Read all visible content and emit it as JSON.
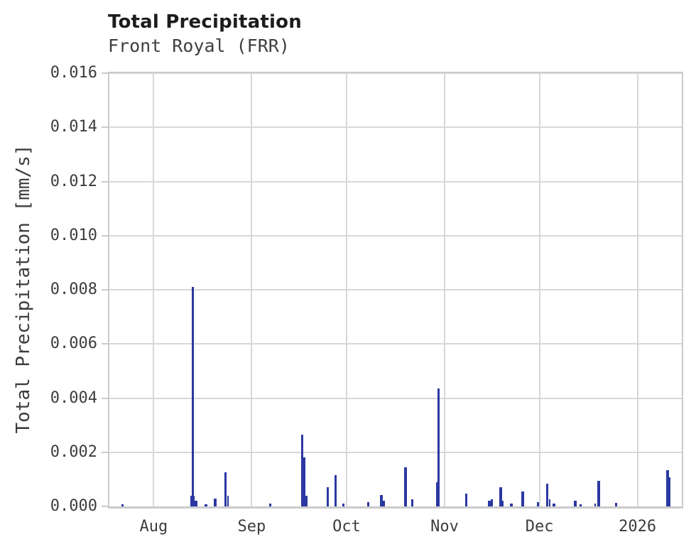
{
  "colors": {
    "bar": "#2b38a2",
    "grid": "#d7d7d7",
    "frame": "#cbcbcb",
    "title_text": "#1c1c1c",
    "label_text": "#3d3d3d"
  },
  "chart_data": {
    "type": "bar",
    "title": "Total Precipitation",
    "subtitle": "Front Royal (FRR)",
    "station": "Front Royal",
    "station_code": "FRR",
    "xlabel": "",
    "ylabel": "Total Precipitation [mm/s]",
    "ylim": [
      0,
      0.016
    ],
    "ytick_labels": [
      "0.000",
      "0.002",
      "0.004",
      "0.006",
      "0.008",
      "0.010",
      "0.012",
      "0.014",
      "0.016"
    ],
    "yticks": [
      0.0,
      0.002,
      0.004,
      0.006,
      0.008,
      0.01,
      0.012,
      0.014,
      0.016
    ],
    "grid": true,
    "legend": "none",
    "x_range": [
      "2025-07-18",
      "2026-01-15"
    ],
    "xticks": [
      {
        "t": "2025-08-01",
        "label": "Aug"
      },
      {
        "t": "2025-09-01",
        "label": "Sep"
      },
      {
        "t": "2025-10-01",
        "label": "Oct"
      },
      {
        "t": "2025-11-01",
        "label": "Nov"
      },
      {
        "t": "2025-12-01",
        "label": "Dec"
      },
      {
        "t": "2026-01-01",
        "label": "2026"
      }
    ],
    "bars": [
      {
        "t": "2025-07-21T17:00",
        "days": 0.8,
        "value": 7e-05
      },
      {
        "t": "2025-08-12T12:00",
        "days": 1.5,
        "value": 0.0004
      },
      {
        "t": "2025-08-13T03:00",
        "days": 0.55,
        "value": 0.0081
      },
      {
        "t": "2025-08-14T00:00",
        "days": 0.8,
        "value": 0.00022
      },
      {
        "t": "2025-08-17T02:00",
        "days": 0.9,
        "value": 7e-05
      },
      {
        "t": "2025-08-20T02:00",
        "days": 0.9,
        "value": 0.0003
      },
      {
        "t": "2025-08-23T10:00",
        "days": 0.75,
        "value": 0.00125
      },
      {
        "t": "2025-08-24T04:00",
        "days": 0.5,
        "value": 0.0004
      },
      {
        "t": "2025-09-06T10:00",
        "days": 0.8,
        "value": 0.0001
      },
      {
        "t": "2025-09-16T14:00",
        "days": 0.65,
        "value": 0.00265
      },
      {
        "t": "2025-09-17T06:00",
        "days": 0.65,
        "value": 0.0018
      },
      {
        "t": "2025-09-17T22:00",
        "days": 0.65,
        "value": 0.0004
      },
      {
        "t": "2025-09-24T17:00",
        "days": 0.7,
        "value": 0.0007
      },
      {
        "t": "2025-09-27T02:00",
        "days": 0.8,
        "value": 0.00115
      },
      {
        "t": "2025-09-29T17:00",
        "days": 0.7,
        "value": 0.0001
      },
      {
        "t": "2025-10-07T11:00",
        "days": 0.8,
        "value": 0.00015
      },
      {
        "t": "2025-10-11T14:00",
        "days": 0.9,
        "value": 0.00042
      },
      {
        "t": "2025-10-12T11:00",
        "days": 0.7,
        "value": 0.0002
      },
      {
        "t": "2025-10-19T07:00",
        "days": 0.8,
        "value": 0.00145
      },
      {
        "t": "2025-10-21T08:00",
        "days": 0.8,
        "value": 0.00027
      },
      {
        "t": "2025-10-29T05:00",
        "days": 0.7,
        "value": 0.0009
      },
      {
        "t": "2025-10-29T17:00",
        "days": 0.65,
        "value": 0.00435
      },
      {
        "t": "2025-11-07T12:00",
        "days": 0.7,
        "value": 0.00047
      },
      {
        "t": "2025-11-14T19:00",
        "days": 0.7,
        "value": 0.0002
      },
      {
        "t": "2025-11-15T12:00",
        "days": 0.8,
        "value": 0.00025
      },
      {
        "t": "2025-11-18T05:00",
        "days": 0.9,
        "value": 0.0007
      },
      {
        "t": "2025-11-19T02:00",
        "days": 0.45,
        "value": 0.0002
      },
      {
        "t": "2025-11-21T14:00",
        "days": 0.9,
        "value": 0.0001
      },
      {
        "t": "2025-11-25T04:00",
        "days": 0.9,
        "value": 0.00056
      },
      {
        "t": "2025-11-30T02:00",
        "days": 0.7,
        "value": 0.00015
      },
      {
        "t": "2025-12-03T02:00",
        "days": 0.8,
        "value": 0.00085
      },
      {
        "t": "2025-12-03T22:00",
        "days": 0.55,
        "value": 0.00025
      },
      {
        "t": "2025-12-05T05:00",
        "days": 0.8,
        "value": 0.0001
      },
      {
        "t": "2025-12-11T22:00",
        "days": 0.9,
        "value": 0.0002
      },
      {
        "t": "2025-12-13T14:00",
        "days": 0.8,
        "value": 8e-05
      },
      {
        "t": "2025-12-18T08:00",
        "days": 0.45,
        "value": 0.0001
      },
      {
        "t": "2025-12-19T05:00",
        "days": 0.9,
        "value": 0.00095
      },
      {
        "t": "2025-12-24T21:00",
        "days": 0.8,
        "value": 0.00012
      },
      {
        "t": "2026-01-10T00:00",
        "days": 0.9,
        "value": 0.00133
      },
      {
        "t": "2026-01-10T22:00",
        "days": 0.45,
        "value": 0.00108
      }
    ]
  }
}
